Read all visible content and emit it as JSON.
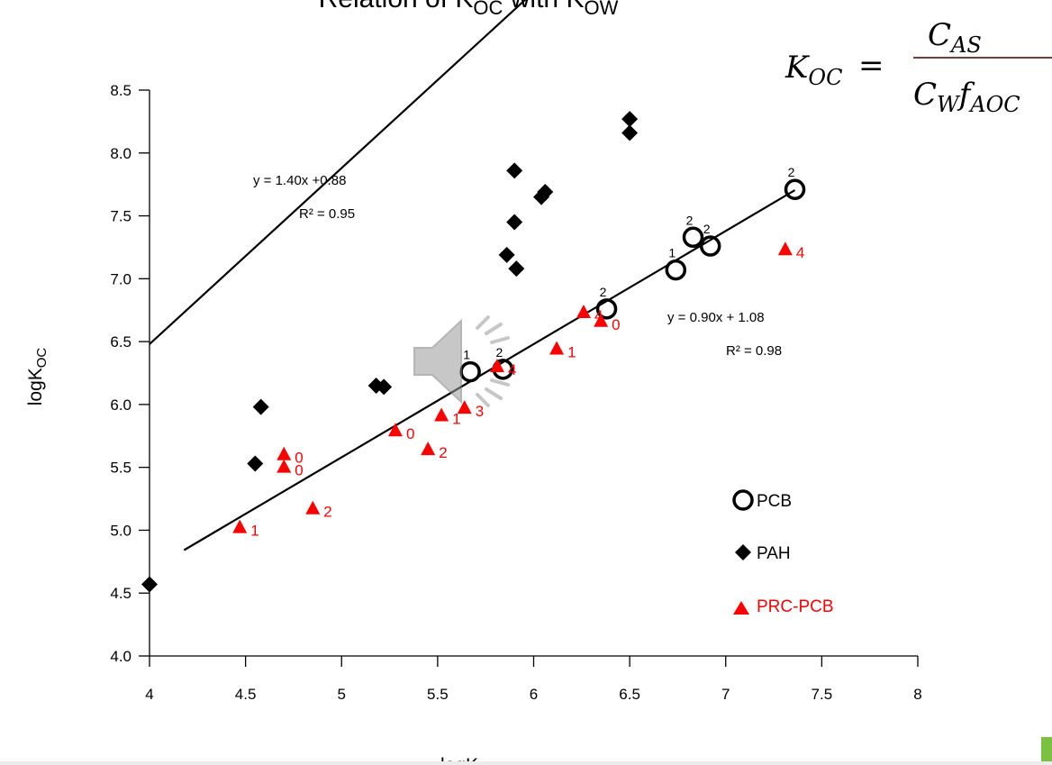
{
  "chart_data": {
    "type": "scatter",
    "title_prefix": "Relation of K",
    "title_sub1": "OC",
    "title_mid": " with K",
    "title_sub2": "OW",
    "formula": {
      "lhs": "K",
      "lhs_sub": "OC",
      "eq": "=",
      "num": "C",
      "num_sub": "AS",
      "den1": "C",
      "den1_sub": "W",
      "den2": "f",
      "den2_sub": "AOC"
    },
    "xlabel": "logK",
    "ylabel_main": "logK",
    "ylabel_sub": "OC",
    "xlim": [
      4,
      8
    ],
    "ylim": [
      4.0,
      8.5
    ],
    "xticks": [
      "4",
      "4.5",
      "5",
      "5.5",
      "6",
      "6.5",
      "7",
      "7.5",
      "8"
    ],
    "yticks": [
      "4.0",
      "4.5",
      "5.0",
      "5.5",
      "6.0",
      "6.5",
      "7.0",
      "7.5",
      "8.0",
      "8.5"
    ],
    "series": [
      {
        "name": "PCB",
        "marker": "open-circle",
        "color": "#000000",
        "points": [
          {
            "x": 5.67,
            "y": 6.26,
            "label": "1"
          },
          {
            "x": 5.84,
            "y": 6.28,
            "label": "2"
          },
          {
            "x": 6.38,
            "y": 6.76,
            "label": "2"
          },
          {
            "x": 6.74,
            "y": 7.07,
            "label": "1"
          },
          {
            "x": 6.83,
            "y": 7.33,
            "label": "2"
          },
          {
            "x": 6.92,
            "y": 7.26,
            "label": "2"
          },
          {
            "x": 7.36,
            "y": 7.71,
            "label": "2"
          }
        ]
      },
      {
        "name": "PAH",
        "marker": "filled-diamond",
        "color": "#000000",
        "points": [
          {
            "x": 4.0,
            "y": 4.57
          },
          {
            "x": 4.55,
            "y": 5.53
          },
          {
            "x": 4.58,
            "y": 5.98
          },
          {
            "x": 5.18,
            "y": 6.15
          },
          {
            "x": 5.22,
            "y": 6.14
          },
          {
            "x": 5.86,
            "y": 7.19
          },
          {
            "x": 5.9,
            "y": 7.45
          },
          {
            "x": 5.91,
            "y": 7.08
          },
          {
            "x": 5.9,
            "y": 7.86
          },
          {
            "x": 6.04,
            "y": 7.65
          },
          {
            "x": 6.06,
            "y": 7.69
          },
          {
            "x": 6.5,
            "y": 8.16
          },
          {
            "x": 6.5,
            "y": 8.27
          }
        ]
      },
      {
        "name": "PRC-PCB",
        "marker": "filled-triangle",
        "color": "#ff0000",
        "points": [
          {
            "x": 4.47,
            "y": 5.02,
            "label": "1"
          },
          {
            "x": 4.7,
            "y": 5.6,
            "label": "0"
          },
          {
            "x": 4.7,
            "y": 5.5,
            "label": "0"
          },
          {
            "x": 4.85,
            "y": 5.17,
            "label": "2"
          },
          {
            "x": 5.28,
            "y": 5.79,
            "label": "0"
          },
          {
            "x": 5.45,
            "y": 5.64,
            "label": "2"
          },
          {
            "x": 5.52,
            "y": 5.91,
            "label": "1"
          },
          {
            "x": 5.64,
            "y": 5.97,
            "label": "3"
          },
          {
            "x": 5.81,
            "y": 6.3,
            "label": "4"
          },
          {
            "x": 6.12,
            "y": 6.44,
            "label": "1"
          },
          {
            "x": 6.26,
            "y": 6.73,
            "label": "4"
          },
          {
            "x": 6.35,
            "y": 6.66,
            "label": "0"
          },
          {
            "x": 7.31,
            "y": 7.23,
            "label": "4"
          }
        ]
      }
    ],
    "fits": [
      {
        "name": "PAH fit",
        "slope": 1.4,
        "intercept": 0.88,
        "x_range": [
          4.0,
          6.5
        ],
        "equation": "y = 1.40x   +0.88",
        "r2": "R² = 0.95"
      },
      {
        "name": "PCB fit",
        "slope": 0.9,
        "intercept": 1.08,
        "x_range": [
          4.18,
          7.36
        ],
        "equation": "y = 0.90x + 1.08",
        "r2": "R² = 0.98"
      }
    ],
    "legend": {
      "position": "right",
      "items": [
        {
          "label": "PCB",
          "marker": "open-circle",
          "color": "#000000"
        },
        {
          "label": "PAH",
          "marker": "filled-diamond",
          "color": "#000000"
        },
        {
          "label": "PRC-PCB",
          "marker": "filled-triangle",
          "color": "#ff0000"
        }
      ]
    },
    "grid": false
  },
  "overlay": {
    "icon": "speaker-icon"
  }
}
